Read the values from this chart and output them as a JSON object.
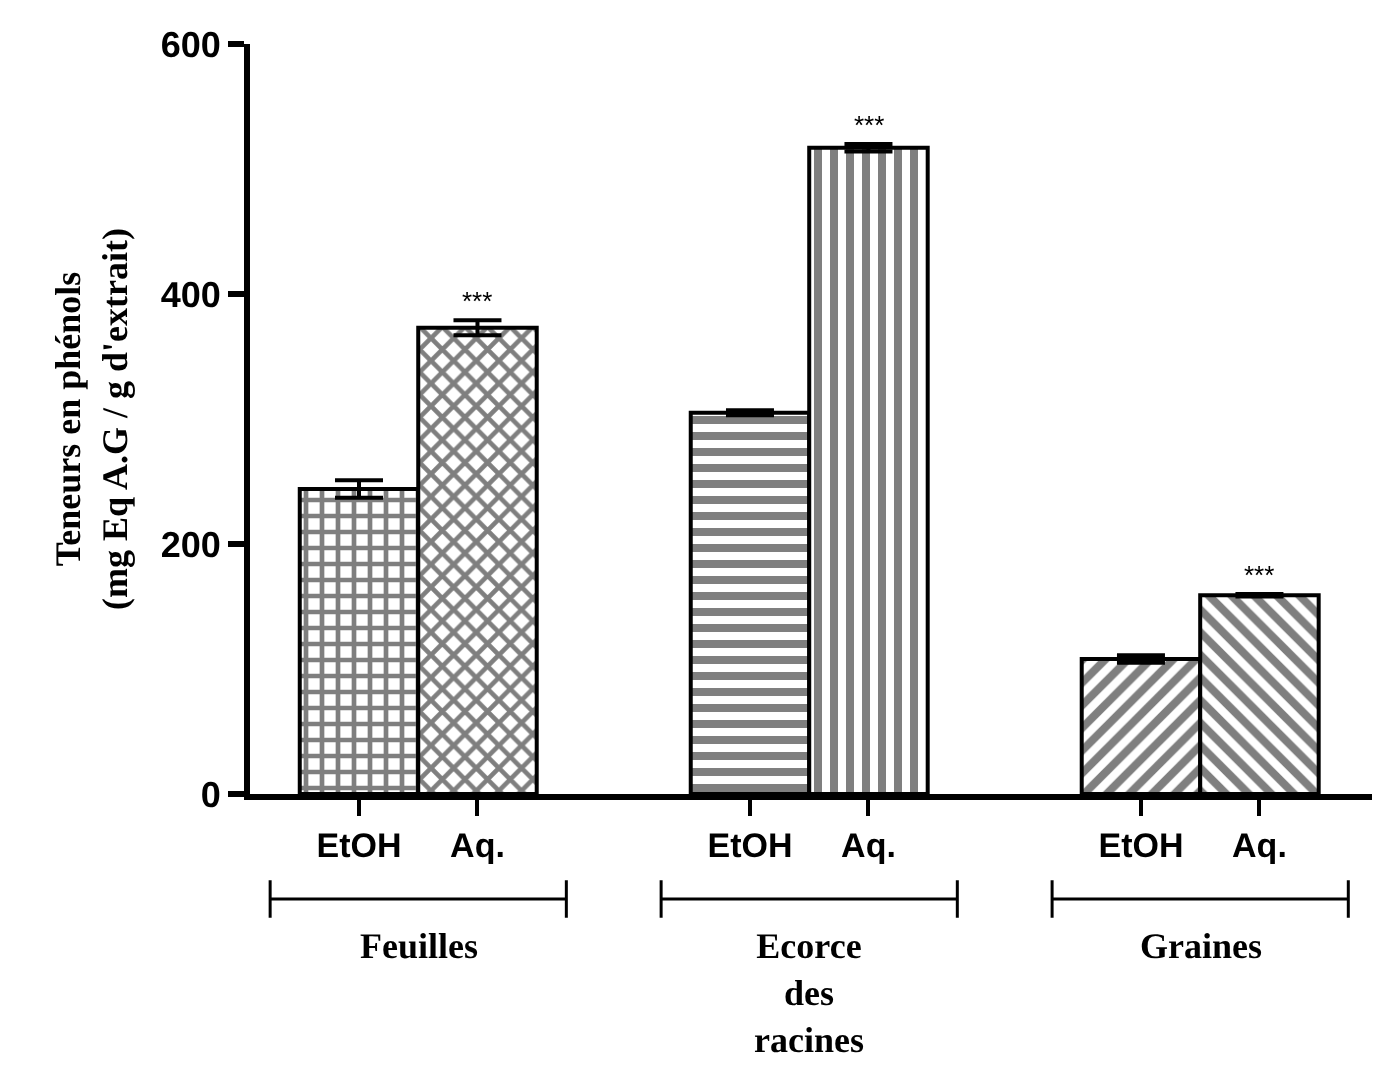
{
  "chart_data": {
    "type": "bar",
    "ylabel": "Teneurs en phénols\n(mg Eq A.G / g d'extrait)",
    "categories": [
      "EtOH",
      "Aq.",
      "EtOH",
      "Aq.",
      "EtOH",
      "Aq."
    ],
    "values": [
      244,
      373,
      305,
      517,
      108,
      159
    ],
    "errors": [
      7,
      6,
      2,
      3,
      3,
      1
    ],
    "value_labels": [
      null,
      "***",
      null,
      "***",
      null,
      "***"
    ],
    "colors": [
      "#000000",
      "#000000",
      "#000000",
      "#000000",
      "#000000",
      "#000000"
    ],
    "annotations": [
      "Feuilles",
      "Ecorce\ndes\nracines",
      "Graines"
    ],
    "ylim": [
      0,
      600
    ],
    "yticks": [
      0,
      200,
      400,
      600
    ]
  }
}
